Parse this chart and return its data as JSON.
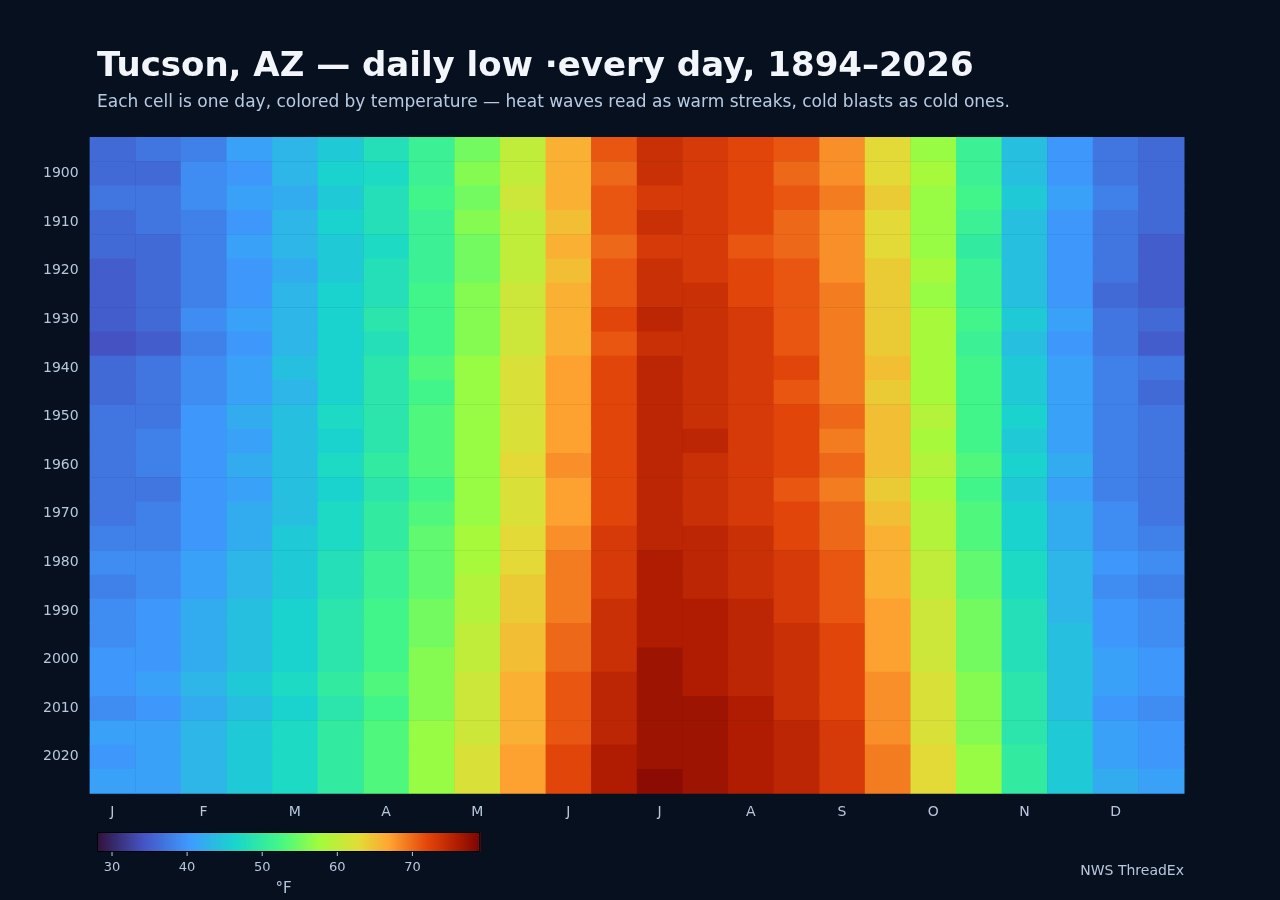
{
  "chart_data": {
    "type": "heatmap",
    "title": "Tucson, AZ — daily low ·every day, 1894–2026",
    "subtitle": "Each cell is one day, colored by temperature — heat waves read as warm streaks, cold blasts as cold ones.",
    "clabel": "°F",
    "annotations": [
      "NWS ThreadEx"
    ],
    "categories": [
      "J",
      null,
      "F",
      null,
      "M",
      null,
      "A",
      null,
      "M",
      null,
      "J",
      null,
      "J",
      null,
      "A",
      null,
      "S",
      null,
      "O",
      null,
      "N",
      null,
      "D",
      null
    ],
    "y_categories": [
      null,
      "1900",
      null,
      "1910",
      null,
      "1920",
      null,
      "1930",
      null,
      "1940",
      null,
      "1950",
      null,
      "1960",
      null,
      "1970",
      null,
      "1980",
      null,
      "1990",
      null,
      "2000",
      null,
      "2010",
      null,
      "2020",
      null
    ],
    "cells": [
      [
        36,
        37,
        38,
        41,
        43,
        45,
        48,
        51,
        55,
        60,
        66,
        71,
        74,
        73,
        72,
        71,
        68,
        63,
        57,
        51,
        44,
        40,
        37,
        36
      ],
      [
        36,
        36,
        39,
        40,
        43,
        46,
        47,
        51,
        56,
        60,
        66,
        70,
        74,
        73,
        72,
        70,
        68,
        63,
        58,
        51,
        44,
        40,
        37,
        36
      ],
      [
        37,
        37,
        39,
        41,
        42,
        45,
        48,
        52,
        55,
        61,
        66,
        71,
        73,
        73,
        72,
        71,
        69,
        64,
        57,
        52,
        45,
        41,
        38,
        36
      ],
      [
        36,
        37,
        38,
        40,
        43,
        46,
        48,
        51,
        56,
        60,
        65,
        71,
        74,
        73,
        72,
        70,
        68,
        63,
        57,
        51,
        44,
        40,
        37,
        36
      ],
      [
        36,
        36,
        38,
        41,
        43,
        45,
        47,
        51,
        55,
        60,
        66,
        70,
        73,
        73,
        71,
        70,
        68,
        63,
        57,
        50,
        44,
        40,
        37,
        35
      ],
      [
        35,
        36,
        38,
        40,
        42,
        45,
        48,
        51,
        55,
        60,
        65,
        71,
        74,
        73,
        72,
        71,
        68,
        64,
        58,
        51,
        44,
        40,
        37,
        35
      ],
      [
        35,
        36,
        38,
        40,
        43,
        46,
        48,
        52,
        56,
        61,
        66,
        71,
        74,
        74,
        72,
        71,
        69,
        64,
        57,
        51,
        44,
        40,
        36,
        35
      ],
      [
        35,
        36,
        39,
        41,
        43,
        46,
        49,
        52,
        56,
        61,
        66,
        72,
        75,
        74,
        73,
        71,
        69,
        64,
        58,
        52,
        45,
        41,
        37,
        36
      ],
      [
        34,
        35,
        38,
        40,
        43,
        46,
        48,
        52,
        56,
        61,
        66,
        71,
        74,
        74,
        73,
        71,
        69,
        64,
        58,
        51,
        44,
        40,
        37,
        35
      ],
      [
        36,
        37,
        39,
        41,
        44,
        46,
        49,
        53,
        57,
        62,
        67,
        72,
        75,
        74,
        73,
        72,
        69,
        65,
        58,
        52,
        45,
        41,
        38,
        37
      ],
      [
        36,
        37,
        39,
        41,
        43,
        46,
        49,
        52,
        57,
        62,
        67,
        72,
        75,
        74,
        73,
        71,
        69,
        64,
        58,
        52,
        45,
        41,
        38,
        36
      ],
      [
        37,
        37,
        40,
        42,
        44,
        47,
        49,
        53,
        57,
        62,
        67,
        72,
        75,
        74,
        73,
        72,
        70,
        65,
        59,
        52,
        46,
        41,
        38,
        37
      ],
      [
        37,
        38,
        40,
        41,
        44,
        46,
        49,
        53,
        57,
        62,
        67,
        72,
        75,
        75,
        73,
        72,
        69,
        65,
        58,
        52,
        45,
        41,
        38,
        37
      ],
      [
        37,
        38,
        40,
        42,
        44,
        47,
        50,
        53,
        57,
        63,
        68,
        72,
        75,
        74,
        73,
        72,
        70,
        65,
        59,
        53,
        46,
        42,
        38,
        37
      ],
      [
        37,
        37,
        40,
        41,
        44,
        46,
        49,
        52,
        57,
        62,
        67,
        72,
        75,
        74,
        73,
        71,
        69,
        64,
        58,
        52,
        45,
        41,
        38,
        37
      ],
      [
        37,
        38,
        40,
        42,
        44,
        47,
        50,
        53,
        57,
        62,
        67,
        72,
        75,
        74,
        73,
        72,
        70,
        65,
        59,
        53,
        46,
        42,
        39,
        37
      ],
      [
        38,
        38,
        40,
        42,
        45,
        47,
        50,
        54,
        58,
        63,
        68,
        73,
        75,
        75,
        74,
        72,
        70,
        66,
        59,
        53,
        46,
        42,
        39,
        38
      ],
      [
        39,
        39,
        41,
        43,
        45,
        48,
        51,
        54,
        58,
        63,
        69,
        73,
        76,
        75,
        74,
        73,
        71,
        66,
        60,
        54,
        47,
        43,
        40,
        39
      ],
      [
        38,
        39,
        41,
        43,
        45,
        48,
        51,
        54,
        59,
        64,
        69,
        73,
        76,
        75,
        74,
        73,
        71,
        66,
        60,
        54,
        47,
        43,
        39,
        38
      ],
      [
        39,
        40,
        42,
        44,
        46,
        49,
        52,
        55,
        59,
        64,
        69,
        74,
        76,
        76,
        75,
        73,
        71,
        67,
        61,
        55,
        48,
        43,
        40,
        39
      ],
      [
        39,
        40,
        42,
        44,
        46,
        49,
        52,
        55,
        60,
        65,
        70,
        74,
        76,
        76,
        75,
        74,
        72,
        67,
        61,
        55,
        48,
        44,
        40,
        39
      ],
      [
        40,
        40,
        42,
        44,
        46,
        49,
        52,
        56,
        60,
        65,
        70,
        74,
        77,
        76,
        75,
        74,
        72,
        67,
        61,
        55,
        48,
        44,
        41,
        40
      ],
      [
        40,
        41,
        43,
        45,
        47,
        50,
        53,
        56,
        61,
        66,
        71,
        75,
        77,
        76,
        75,
        74,
        72,
        68,
        62,
        56,
        49,
        44,
        41,
        40
      ],
      [
        39,
        40,
        42,
        44,
        46,
        49,
        52,
        56,
        61,
        66,
        71,
        75,
        77,
        77,
        76,
        74,
        72,
        68,
        62,
        56,
        49,
        44,
        40,
        39
      ],
      [
        41,
        41,
        43,
        45,
        47,
        50,
        53,
        57,
        61,
        66,
        71,
        75,
        77,
        77,
        76,
        75,
        73,
        68,
        62,
        56,
        49,
        45,
        41,
        40
      ],
      [
        40,
        41,
        43,
        45,
        47,
        50,
        53,
        57,
        62,
        67,
        72,
        76,
        77,
        77,
        76,
        75,
        73,
        69,
        63,
        57,
        50,
        45,
        41,
        40
      ],
      [
        41,
        41,
        43,
        45,
        47,
        50,
        53,
        57,
        62,
        67,
        72,
        76,
        78,
        77,
        76,
        75,
        73,
        69,
        63,
        57,
        50,
        45,
        42,
        41
      ]
    ],
    "clim": [
      28,
      79
    ],
    "cticks": [
      30,
      40,
      50,
      60,
      70
    ]
  }
}
